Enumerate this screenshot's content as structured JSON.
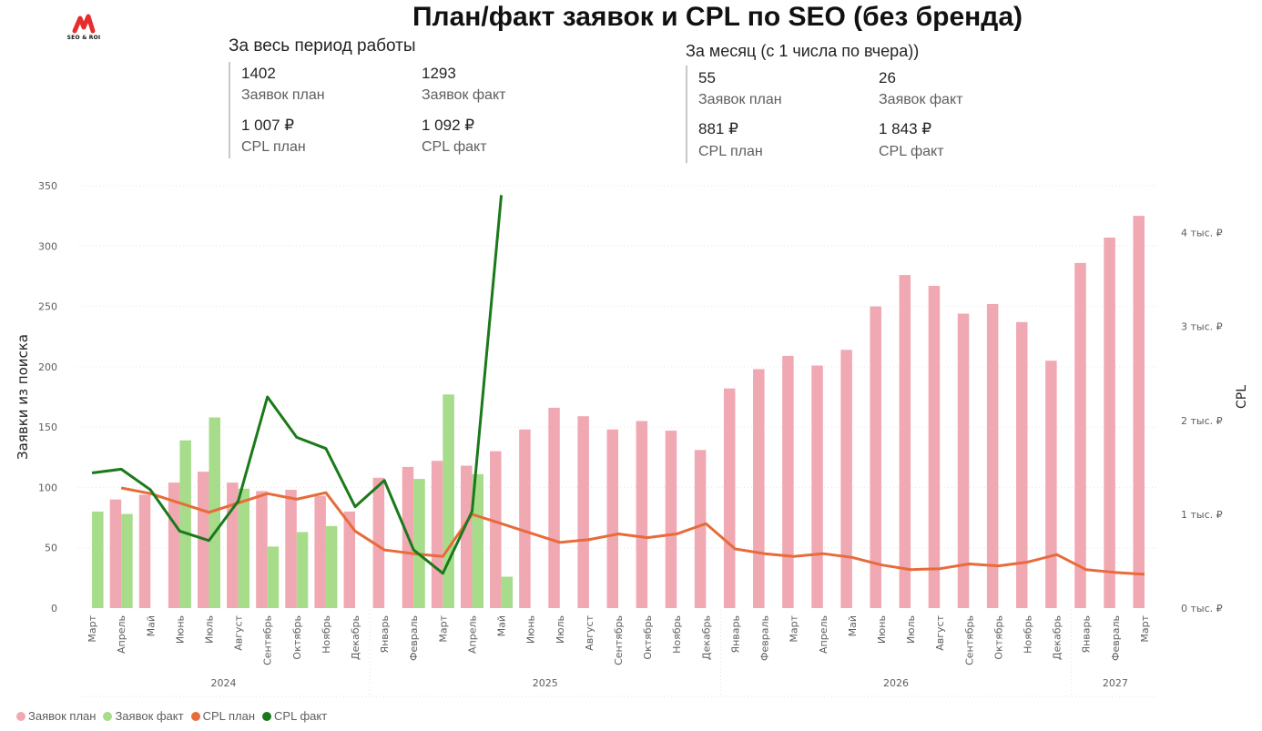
{
  "logo": {
    "text": "SEO & ROI",
    "color": "#e52d2d"
  },
  "title": "План/факт заявок и CPL по SEO (без бренда)",
  "kpi_total": {
    "heading": "За весь период работы",
    "leads_plan_value": "1402",
    "leads_plan_label": "Заявок план",
    "leads_fact_value": "1293",
    "leads_fact_label": "Заявок факт",
    "cpl_plan_value": "1 007 ₽",
    "cpl_plan_label": "CPL план",
    "cpl_fact_value": "1 092 ₽",
    "cpl_fact_label": "CPL факт"
  },
  "kpi_month": {
    "heading": "За месяц (с 1 числа по вчера))",
    "leads_plan_value": "55",
    "leads_plan_label": "Заявок план",
    "leads_fact_value": "26",
    "leads_fact_label": "Заявок факт",
    "cpl_plan_value": "881 ₽",
    "cpl_plan_label": "CPL план",
    "cpl_fact_value": "1 843 ₽",
    "cpl_fact_label": "CPL факт"
  },
  "chart_data": {
    "type": "bar",
    "categories": [
      "Март",
      "Апрель",
      "Май",
      "Июнь",
      "Июль",
      "Август",
      "Сентябрь",
      "Октябрь",
      "Ноябрь",
      "Декабрь",
      "Январь",
      "Февраль",
      "Март",
      "Апрель",
      "Май",
      "Июнь",
      "Июль",
      "Август",
      "Сентябрь",
      "Октябрь",
      "Ноябрь",
      "Декабрь",
      "Январь",
      "Февраль",
      "Март",
      "Апрель",
      "Май",
      "Июнь",
      "Июль",
      "Август",
      "Сентябрь",
      "Октябрь",
      "Ноябрь",
      "Декабрь",
      "Январь",
      "Февраль",
      "Март"
    ],
    "years": [
      {
        "label": "2024",
        "start": 0,
        "end": 9
      },
      {
        "label": "2025",
        "start": 10,
        "end": 21
      },
      {
        "label": "2026",
        "start": 22,
        "end": 33
      },
      {
        "label": "2027",
        "start": 34,
        "end": 36
      }
    ],
    "ylabel": "Заявки из поиска",
    "y2label": "CPL",
    "ylim": [
      0,
      350
    ],
    "yticks": [
      0,
      50,
      100,
      150,
      200,
      250,
      300,
      350
    ],
    "y2lim": [
      0,
      4500
    ],
    "y2ticks": [
      0,
      1000,
      2000,
      3000,
      4000
    ],
    "y2ticklabels": [
      "0 тыс. ₽",
      "1 тыс. ₽",
      "2 тыс. ₽",
      "3 тыс. ₽",
      "4 тыс. ₽"
    ],
    "grid": true,
    "legend_position": "bottom-left",
    "series": [
      {
        "name": "Заявок план",
        "kind": "bar",
        "axis": "left",
        "color": "#f0a8b2",
        "values": [
          null,
          90,
          94,
          104,
          113,
          104,
          97,
          98,
          93,
          80,
          108,
          117,
          122,
          118,
          130,
          148,
          166,
          159,
          148,
          155,
          147,
          131,
          182,
          198,
          209,
          201,
          214,
          250,
          276,
          267,
          244,
          252,
          237,
          205,
          286,
          307,
          325
        ]
      },
      {
        "name": "Заявок факт",
        "kind": "bar",
        "axis": "left",
        "color": "#a6dc8a",
        "values": [
          80,
          78,
          null,
          139,
          158,
          99,
          51,
          63,
          68,
          null,
          null,
          107,
          177,
          111,
          26,
          null,
          null,
          null,
          null,
          null,
          null,
          null,
          null,
          null,
          null,
          null,
          null,
          null,
          null,
          null,
          null,
          null,
          null,
          null,
          null,
          null,
          null
        ]
      },
      {
        "name": "CPL план",
        "kind": "line",
        "axis": "right",
        "color": "#e86b3a",
        "values": [
          null,
          1280,
          1220,
          1120,
          1020,
          1120,
          1220,
          1160,
          1230,
          820,
          620,
          580,
          550,
          1000,
          900,
          800,
          700,
          730,
          790,
          750,
          790,
          900,
          630,
          580,
          550,
          580,
          540,
          460,
          410,
          420,
          470,
          450,
          490,
          570,
          410,
          380,
          360
        ]
      },
      {
        "name": "CPL факт",
        "kind": "line",
        "axis": "right",
        "color": "#1a7a1a",
        "values": [
          1440,
          1480,
          1260,
          820,
          720,
          1140,
          2250,
          1820,
          1700,
          1080,
          1360,
          620,
          370,
          1030,
          4400,
          null,
          null,
          null,
          null,
          null,
          null,
          null,
          null,
          null,
          null,
          null,
          null,
          null,
          null,
          null,
          null,
          null,
          null,
          null,
          null,
          null,
          null
        ]
      }
    ]
  }
}
